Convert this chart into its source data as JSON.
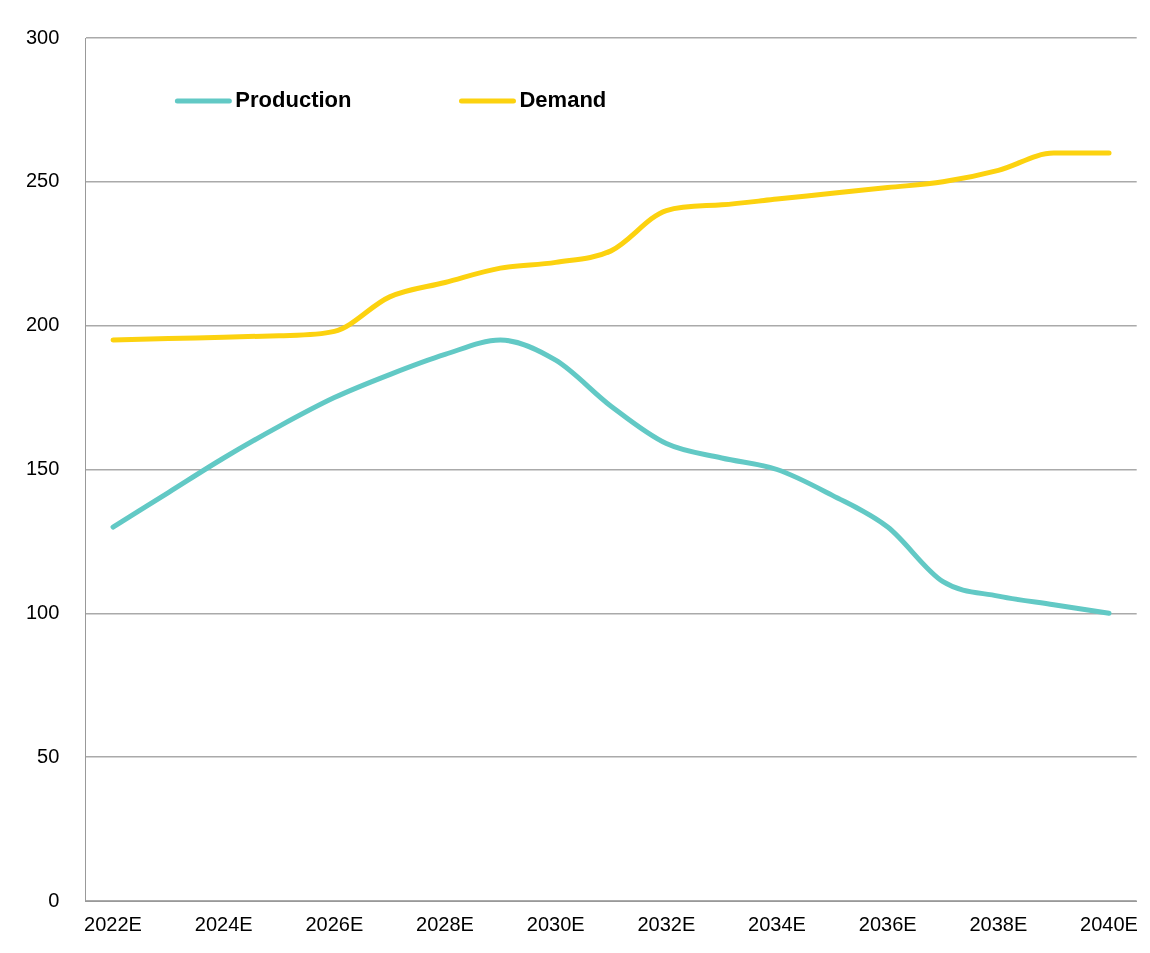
{
  "chart_data": {
    "type": "line",
    "categories": [
      "2022E",
      null,
      "2024E",
      null,
      "2026E",
      null,
      "2028E",
      null,
      "2030E",
      null,
      "2032E",
      null,
      "2034E",
      null,
      "2036E",
      null,
      "2038E",
      null,
      "2040E"
    ],
    "series": [
      {
        "name": "Production",
        "color": "#62c9c5",
        "values": [
          130,
          142,
          154,
          165,
          175,
          183,
          190,
          195,
          188,
          172,
          159,
          154,
          150,
          141,
          130,
          111,
          106,
          103,
          100
        ]
      },
      {
        "name": "Demand",
        "color": "#fcd20f",
        "values": [
          195,
          195.5,
          196,
          196.5,
          198,
          210,
          215,
          220,
          222,
          226,
          240,
          242,
          244,
          246,
          248,
          250,
          254,
          260,
          260
        ]
      }
    ],
    "ylim": [
      0,
      300
    ],
    "yticks": [
      0,
      50,
      100,
      150,
      200,
      250,
      300
    ],
    "grid": "y",
    "legend": "top left",
    "marker": "none",
    "line_style": "solid"
  }
}
